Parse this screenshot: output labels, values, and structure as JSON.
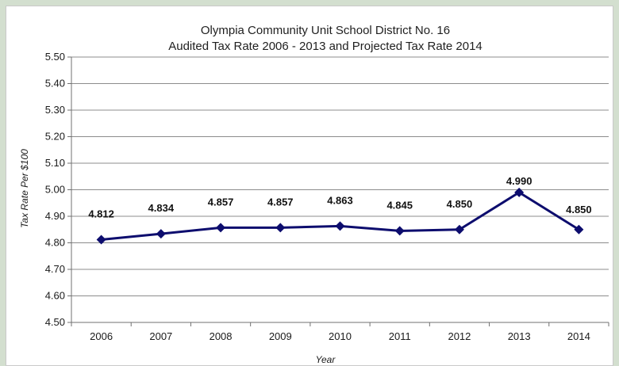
{
  "chart_data": {
    "type": "line",
    "title": "Olympia Community Unit School District No. 16",
    "subtitle": "Audited Tax Rate 2006 - 2013 and Projected Tax Rate 2014",
    "xlabel": "Year",
    "ylabel": "Tax Rate Per $100",
    "ylim": [
      4.5,
      5.5
    ],
    "yticks": [
      "4.50",
      "4.60",
      "4.70",
      "4.80",
      "4.90",
      "5.00",
      "5.10",
      "5.20",
      "5.30",
      "5.40",
      "5.50"
    ],
    "categories": [
      "2006",
      "2007",
      "2008",
      "2009",
      "2010",
      "2011",
      "2012",
      "2013",
      "2014"
    ],
    "series": [
      {
        "values": [
          4.812,
          4.834,
          4.857,
          4.857,
          4.863,
          4.845,
          4.85,
          4.99,
          4.85
        ],
        "labels": [
          "4.812",
          "4.834",
          "4.857",
          "4.857",
          "4.863",
          "4.845",
          "4.850",
          "4.990",
          "4.850"
        ],
        "color": "#0d0d6e",
        "marker": "diamond"
      }
    ],
    "grid": true,
    "legend": "none",
    "colors": {
      "line": "#0d0d6e",
      "grid": "#8c8c8c",
      "axis": "#707070"
    }
  }
}
